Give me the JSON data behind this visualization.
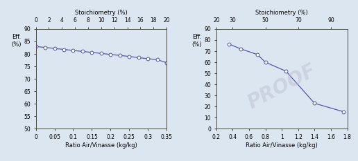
{
  "plot1": {
    "x": [
      0.0,
      0.025,
      0.05,
      0.075,
      0.1,
      0.125,
      0.15,
      0.175,
      0.2,
      0.225,
      0.25,
      0.275,
      0.3,
      0.325,
      0.35
    ],
    "y": [
      83.0,
      82.6,
      82.2,
      81.8,
      81.4,
      81.0,
      80.6,
      80.2,
      79.8,
      79.4,
      79.0,
      78.5,
      78.1,
      77.7,
      76.5
    ],
    "xlim": [
      0,
      0.35
    ],
    "x2lim": [
      0,
      20
    ],
    "ylim": [
      50,
      90
    ],
    "yticks": [
      50,
      55,
      60,
      65,
      70,
      75,
      80,
      85,
      90
    ],
    "xticks": [
      0,
      0.05,
      0.1,
      0.15,
      0.2,
      0.25,
      0.3,
      0.35
    ],
    "xtick_labels": [
      "0",
      "0.05",
      "0.1",
      "0.15",
      "0.2",
      "0.25",
      "0.3",
      "0.35"
    ],
    "x2ticks": [
      0,
      2,
      4,
      6,
      8,
      10,
      12,
      14,
      16,
      18,
      20
    ],
    "x2tick_labels": [
      "0",
      "2",
      "4",
      "6",
      "8",
      "10",
      "12",
      "14",
      "16",
      "18",
      "20"
    ],
    "xlabel": "Ratio Air/Vinasse (kg/kg)",
    "x2label": "Stoichiometry (%)",
    "ylabel": "Eff.\n(%)"
  },
  "plot2": {
    "x": [
      0.35,
      0.5,
      0.7,
      0.8,
      1.05,
      1.4,
      1.75
    ],
    "y": [
      76.5,
      72.0,
      67.0,
      60.0,
      52.0,
      23.0,
      15.5
    ],
    "xlim": [
      0.2,
      1.8
    ],
    "x2lim": [
      20,
      100
    ],
    "ylim": [
      0,
      90
    ],
    "yticks": [
      0,
      10,
      20,
      30,
      40,
      50,
      60,
      70,
      80,
      90
    ],
    "xticks": [
      0.2,
      0.4,
      0.6,
      0.8,
      1.0,
      1.2,
      1.4,
      1.6,
      1.8
    ],
    "xtick_labels": [
      "0.2",
      "0.4",
      "0.6",
      "0.8",
      "1",
      "1.2",
      "1.4",
      "1.6",
      "1.8"
    ],
    "x2ticks": [
      20,
      30,
      50,
      70,
      90
    ],
    "x2tick_labels": [
      "20",
      "30",
      "50",
      "70",
      "90"
    ],
    "xlabel": "Ratio Air/Vinasse (kg/kg)",
    "x2label": "Stoichiometry (%)",
    "ylabel": "Eff.\n(%)"
  },
  "line_color": "#5555aa",
  "marker": "o",
  "marker_facecolor": "white",
  "marker_edgecolor": "#5555aa",
  "fig_facecolor": "#dce6f1",
  "axes_facecolor": "#dce6f1",
  "watermark": "PROOF",
  "watermark_color": "#bbbbcc",
  "watermark_alpha": 0.45
}
